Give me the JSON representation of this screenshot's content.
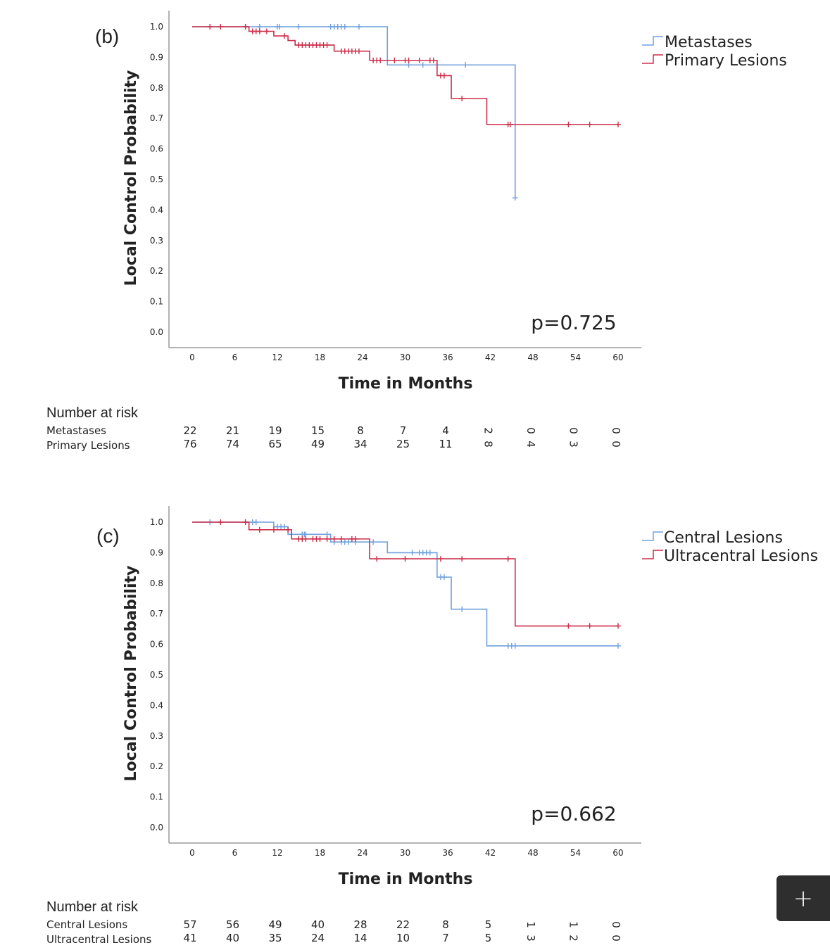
{
  "colors": {
    "blue": "#6fa1dd",
    "red": "#cc2e4a",
    "axis": "#9a9a9a",
    "text": "#222222"
  },
  "fab": {
    "label": "+",
    "icon": "plus-icon"
  },
  "chart_data": [
    {
      "type": "line",
      "step": true,
      "panel_label": "(b)",
      "xlabel": "Time in Months",
      "ylabel": "Local Control Probability",
      "xlim": [
        0,
        60
      ],
      "ylim": [
        0,
        1
      ],
      "xticks": [
        "0",
        "6",
        "12",
        "18",
        "24",
        "30",
        "36",
        "42",
        "48",
        "54",
        "60"
      ],
      "yticks": [
        "0.0",
        "0.1",
        "0.2",
        "0.3",
        "0.4",
        "0.5",
        "0.6",
        "0.7",
        "0.8",
        "0.9",
        "1.0"
      ],
      "p_value": "p=0.725",
      "legend_position": "top-right",
      "series": [
        {
          "name": "Metastases",
          "color": "blue",
          "steps": [
            [
              0,
              1.0
            ],
            [
              27.5,
              0.875
            ],
            [
              45.5,
              0.44
            ]
          ],
          "end_x": 45.5,
          "censored": [
            [
              7.5,
              1.0
            ],
            [
              9.5,
              1.0
            ],
            [
              12,
              1.0
            ],
            [
              12.3,
              1.0
            ],
            [
              15,
              1.0
            ],
            [
              19.5,
              1.0
            ],
            [
              20,
              1.0
            ],
            [
              20.5,
              1.0
            ],
            [
              21,
              1.0
            ],
            [
              21.5,
              1.0
            ],
            [
              23.5,
              1.0
            ],
            [
              30.5,
              0.875
            ],
            [
              32.5,
              0.875
            ],
            [
              38.5,
              0.875
            ],
            [
              45.5,
              0.44
            ]
          ]
        },
        {
          "name": "Primary Lesions",
          "color": "red",
          "steps": [
            [
              0,
              1.0
            ],
            [
              8,
              0.985
            ],
            [
              11.5,
              0.97
            ],
            [
              13.5,
              0.955
            ],
            [
              14.5,
              0.94
            ],
            [
              20,
              0.92
            ],
            [
              25,
              0.89
            ],
            [
              34.5,
              0.84
            ],
            [
              36.5,
              0.765
            ],
            [
              41.5,
              0.68
            ]
          ],
          "end_x": 60,
          "censored": [
            [
              2.5,
              1.0
            ],
            [
              4,
              1.0
            ],
            [
              7.5,
              1.0
            ],
            [
              8.5,
              0.985
            ],
            [
              9,
              0.985
            ],
            [
              9.5,
              0.985
            ],
            [
              10.5,
              0.985
            ],
            [
              13,
              0.97
            ],
            [
              15,
              0.94
            ],
            [
              15.5,
              0.94
            ],
            [
              16,
              0.94
            ],
            [
              16.5,
              0.94
            ],
            [
              17,
              0.94
            ],
            [
              17.5,
              0.94
            ],
            [
              18,
              0.94
            ],
            [
              18.5,
              0.94
            ],
            [
              19,
              0.94
            ],
            [
              21,
              0.92
            ],
            [
              21.5,
              0.92
            ],
            [
              22,
              0.92
            ],
            [
              22.5,
              0.92
            ],
            [
              23,
              0.92
            ],
            [
              23.5,
              0.92
            ],
            [
              25.5,
              0.89
            ],
            [
              26,
              0.89
            ],
            [
              26.5,
              0.89
            ],
            [
              28.5,
              0.89
            ],
            [
              30,
              0.89
            ],
            [
              30.5,
              0.89
            ],
            [
              32,
              0.89
            ],
            [
              33.5,
              0.89
            ],
            [
              34,
              0.89
            ],
            [
              35,
              0.84
            ],
            [
              35.5,
              0.84
            ],
            [
              38,
              0.765
            ],
            [
              44.5,
              0.68
            ],
            [
              44.8,
              0.68
            ],
            [
              53,
              0.68
            ],
            [
              56,
              0.68
            ],
            [
              60,
              0.68
            ]
          ]
        }
      ],
      "risk_table": {
        "title": "Number at risk",
        "rows": [
          {
            "label": "Metastases",
            "values": [
              "22",
              "21",
              "19",
              "15",
              "8",
              "7",
              "4",
              "2",
              "0",
              "0",
              "0"
            ],
            "rotate_from": 7
          },
          {
            "label": "Primary Lesions",
            "values": [
              "76",
              "74",
              "65",
              "49",
              "34",
              "25",
              "11",
              "8",
              "4",
              "3",
              "0"
            ],
            "rotate_from": 7
          }
        ]
      }
    },
    {
      "type": "line",
      "step": true,
      "panel_label": "(c)",
      "xlabel": "Time in Months",
      "ylabel": "Local Control Probability",
      "xlim": [
        0,
        60
      ],
      "ylim": [
        0,
        1
      ],
      "xticks": [
        "0",
        "6",
        "12",
        "18",
        "24",
        "30",
        "36",
        "42",
        "48",
        "54",
        "60"
      ],
      "yticks": [
        "0.0",
        "0.1",
        "0.2",
        "0.3",
        "0.4",
        "0.5",
        "0.6",
        "0.7",
        "0.8",
        "0.9",
        "1.0"
      ],
      "p_value": "p=0.662",
      "legend_position": "top-right",
      "series": [
        {
          "name": "Central Lesions",
          "color": "blue",
          "steps": [
            [
              0,
              1.0
            ],
            [
              11.5,
              0.985
            ],
            [
              13.5,
              0.96
            ],
            [
              19.5,
              0.935
            ],
            [
              27.5,
              0.9
            ],
            [
              34.5,
              0.82
            ],
            [
              36.5,
              0.715
            ],
            [
              41.5,
              0.595
            ]
          ],
          "end_x": 60,
          "censored": [
            [
              2.5,
              1.0
            ],
            [
              7.5,
              1.0
            ],
            [
              8.5,
              1.0
            ],
            [
              9,
              1.0
            ],
            [
              12,
              0.985
            ],
            [
              12.5,
              0.985
            ],
            [
              13,
              0.985
            ],
            [
              15.5,
              0.96
            ],
            [
              15.8,
              0.96
            ],
            [
              16,
              0.96
            ],
            [
              19,
              0.96
            ],
            [
              20,
              0.935
            ],
            [
              21,
              0.935
            ],
            [
              21.5,
              0.935
            ],
            [
              22,
              0.935
            ],
            [
              23,
              0.935
            ],
            [
              25.5,
              0.935
            ],
            [
              31,
              0.9
            ],
            [
              32,
              0.9
            ],
            [
              32.5,
              0.9
            ],
            [
              33,
              0.9
            ],
            [
              33.5,
              0.9
            ],
            [
              35,
              0.82
            ],
            [
              35.5,
              0.82
            ],
            [
              38,
              0.715
            ],
            [
              44.5,
              0.595
            ],
            [
              45,
              0.595
            ],
            [
              45.5,
              0.595
            ],
            [
              60,
              0.595
            ]
          ]
        },
        {
          "name": "Ultracentral Lesions",
          "color": "red",
          "steps": [
            [
              0,
              1.0
            ],
            [
              8,
              0.975
            ],
            [
              14,
              0.945
            ],
            [
              25,
              0.88
            ],
            [
              45.5,
              0.66
            ]
          ],
          "end_x": 60,
          "censored": [
            [
              4,
              1.0
            ],
            [
              7.5,
              1.0
            ],
            [
              9.5,
              0.975
            ],
            [
              11.5,
              0.975
            ],
            [
              13.5,
              0.975
            ],
            [
              15,
              0.945
            ],
            [
              15.5,
              0.945
            ],
            [
              16,
              0.945
            ],
            [
              17,
              0.945
            ],
            [
              17.5,
              0.945
            ],
            [
              18,
              0.945
            ],
            [
              19,
              0.945
            ],
            [
              20,
              0.945
            ],
            [
              21,
              0.945
            ],
            [
              22.5,
              0.945
            ],
            [
              23,
              0.945
            ],
            [
              26,
              0.88
            ],
            [
              30,
              0.88
            ],
            [
              35,
              0.88
            ],
            [
              38,
              0.88
            ],
            [
              44.5,
              0.88
            ],
            [
              53,
              0.66
            ],
            [
              56,
              0.66
            ],
            [
              60,
              0.66
            ]
          ]
        }
      ],
      "risk_table": {
        "title": "Number at risk",
        "rows": [
          {
            "label": "Central Lesions",
            "values": [
              "57",
              "56",
              "49",
              "40",
              "28",
              "22",
              "8",
              "5",
              "1",
              "1",
              "0"
            ],
            "rotate_from": 8
          },
          {
            "label": "Ultracentral Lesions",
            "values": [
              "41",
              "40",
              "35",
              "24",
              "14",
              "10",
              "7",
              "5",
              "3",
              "2",
              "0"
            ],
            "rotate_from": 8
          }
        ]
      }
    }
  ]
}
